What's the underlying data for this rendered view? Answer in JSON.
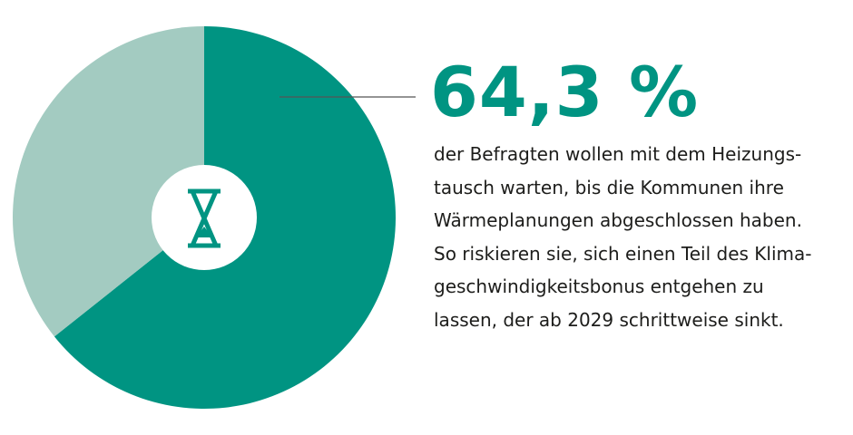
{
  "chart_data": {
    "type": "pie",
    "variant": "donut",
    "slices": [
      {
        "value": 64.3,
        "color": "#009482"
      },
      {
        "value": 35.7,
        "color": "#a3cbc1"
      }
    ],
    "start": "12 o'clock",
    "direction": "clockwise",
    "center_icon": "hourglass-icon",
    "center_icon_color": "#009482"
  },
  "callout": {
    "value_label": "64,3 %",
    "text_lines": [
      "der Befragten wollen mit dem Heizungs-",
      "tausch warten, bis die Kommunen ihre",
      "Wärmeplanungen abgeschlossen haben.",
      "So riskieren sie, sich einen Teil des Klima-",
      "geschwindigkeitsbonus entgehen zu",
      "lassen, der ab 2029 schrittweise sinkt."
    ]
  },
  "colors": {
    "accent": "#009482",
    "accent_light": "#a3cbc1",
    "text": "#1d1d1b",
    "leader_line": "#555555"
  }
}
